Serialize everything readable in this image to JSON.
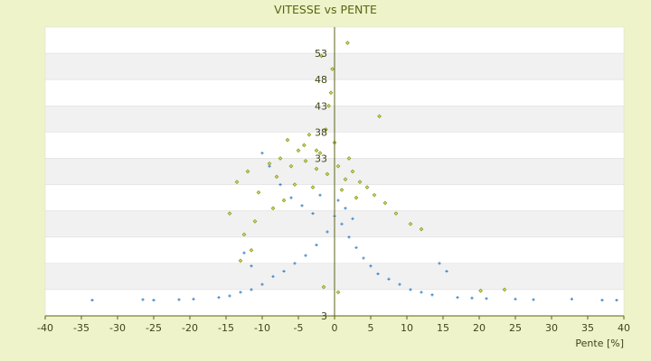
{
  "chart_data": {
    "type": "scatter",
    "title": "VITESSE vs PENTE",
    "xlabel": "Pente [%]",
    "ylabel": "",
    "xlim": [
      -40,
      40
    ],
    "ylim": [
      3,
      58
    ],
    "xticks": [
      "-40",
      "-35",
      "-30",
      "-25",
      "-20",
      "-15",
      "-10",
      "-5",
      "0",
      "5",
      "10",
      "15",
      "20",
      "25",
      "30",
      "35",
      "40"
    ],
    "yticks": [
      "3",
      "33",
      "38",
      "43",
      "48",
      "53"
    ],
    "grid": "horizontal alternating bands",
    "series": [
      {
        "marker": "diamond",
        "color": "#8a9a1a",
        "points": [
          [
            -6.5,
            36.5
          ],
          [
            -5.0,
            34.5
          ],
          [
            -4.2,
            35.5
          ],
          [
            -3.5,
            37.5
          ],
          [
            -2.0,
            34.0
          ],
          [
            -1.2,
            38.5
          ],
          [
            -0.8,
            43.0
          ],
          [
            -0.5,
            45.5
          ],
          [
            -1.8,
            52.5
          ],
          [
            1.8,
            55.0
          ],
          [
            -0.3,
            50.0
          ],
          [
            6.2,
            41.0
          ],
          [
            -7.5,
            33.0
          ],
          [
            -9.0,
            32.0
          ],
          [
            -12.0,
            30.5
          ],
          [
            -13.5,
            28.5
          ],
          [
            -10.5,
            26.5
          ],
          [
            -8.0,
            29.5
          ],
          [
            -6.0,
            31.5
          ],
          [
            -4.0,
            32.5
          ],
          [
            -2.5,
            31.0
          ],
          [
            -1.0,
            30.0
          ],
          [
            0.5,
            31.5
          ],
          [
            1.5,
            29.0
          ],
          [
            2.5,
            30.5
          ],
          [
            3.5,
            28.5
          ],
          [
            4.5,
            27.5
          ],
          [
            5.5,
            26.0
          ],
          [
            7.0,
            24.5
          ],
          [
            8.5,
            22.5
          ],
          [
            10.5,
            20.5
          ],
          [
            12.0,
            19.5
          ],
          [
            -14.5,
            22.5
          ],
          [
            -11.0,
            21.0
          ],
          [
            -12.5,
            18.5
          ],
          [
            -11.5,
            15.5
          ],
          [
            -13.0,
            13.5
          ],
          [
            20.2,
            7.8
          ],
          [
            23.5,
            8.0
          ],
          [
            -1.5,
            8.5
          ],
          [
            0.5,
            7.5
          ],
          [
            -3.0,
            27.5
          ],
          [
            -5.5,
            28.0
          ],
          [
            1.0,
            27.0
          ],
          [
            3.0,
            25.5
          ],
          [
            -7.0,
            25.0
          ],
          [
            2.0,
            33.0
          ],
          [
            -2.5,
            34.5
          ],
          [
            0.0,
            36.0
          ],
          [
            -8.5,
            23.5
          ]
        ]
      },
      {
        "marker": "cross",
        "color": "#3f86c8",
        "points": [
          [
            -33.5,
            6.0
          ],
          [
            -26.5,
            6.1
          ],
          [
            -25.0,
            6.0
          ],
          [
            -21.5,
            6.1
          ],
          [
            -19.5,
            6.2
          ],
          [
            -16.0,
            6.5
          ],
          [
            -14.5,
            6.8
          ],
          [
            -13.0,
            7.5
          ],
          [
            -11.5,
            8.0
          ],
          [
            -10.0,
            9.0
          ],
          [
            -8.5,
            10.5
          ],
          [
            -7.0,
            11.5
          ],
          [
            -5.5,
            13.0
          ],
          [
            -4.0,
            14.5
          ],
          [
            -2.5,
            16.5
          ],
          [
            -1.0,
            19.0
          ],
          [
            0.0,
            22.0
          ],
          [
            1.0,
            20.5
          ],
          [
            2.0,
            18.0
          ],
          [
            3.0,
            16.0
          ],
          [
            4.0,
            14.0
          ],
          [
            5.0,
            12.5
          ],
          [
            6.0,
            11.0
          ],
          [
            7.5,
            10.0
          ],
          [
            9.0,
            9.0
          ],
          [
            10.5,
            8.0
          ],
          [
            12.0,
            7.5
          ],
          [
            13.5,
            7.0
          ],
          [
            14.5,
            13.0
          ],
          [
            15.5,
            11.5
          ],
          [
            17.0,
            6.5
          ],
          [
            19.0,
            6.4
          ],
          [
            21.0,
            6.3
          ],
          [
            25.0,
            6.2
          ],
          [
            27.5,
            6.1
          ],
          [
            32.8,
            6.2
          ],
          [
            37.0,
            6.0
          ],
          [
            39.0,
            6.0
          ],
          [
            -10.0,
            34.0
          ],
          [
            -9.0,
            31.5
          ],
          [
            -7.5,
            28.0
          ],
          [
            -6.0,
            25.5
          ],
          [
            -4.5,
            24.0
          ],
          [
            -3.0,
            22.5
          ],
          [
            -2.0,
            26.0
          ],
          [
            0.5,
            25.0
          ],
          [
            1.5,
            23.5
          ],
          [
            2.5,
            21.5
          ],
          [
            -12.5,
            15.0
          ],
          [
            -11.5,
            12.5
          ]
        ]
      }
    ]
  }
}
